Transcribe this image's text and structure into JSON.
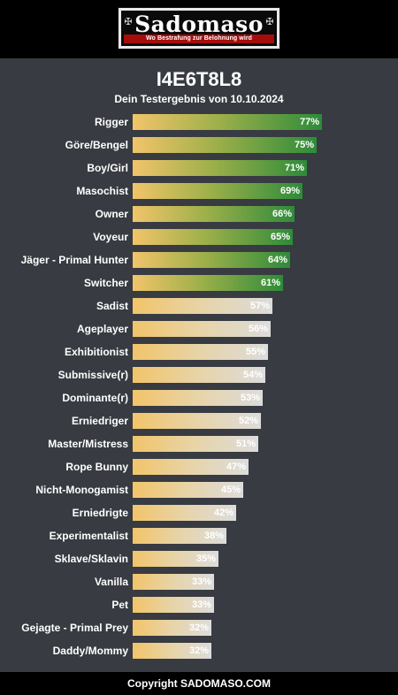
{
  "header": {
    "logo_text": "Sadomaso",
    "tagline": "Wo Bestrafung zur Belohnung wird"
  },
  "result": {
    "code": "I4E6T8L8",
    "subtitle": "Dein Testergebnis von 10.10.2024"
  },
  "chart_data": {
    "type": "bar",
    "categories": [
      "Rigger",
      "Göre/Bengel",
      "Boy/Girl",
      "Masochist",
      "Owner",
      "Voyeur",
      "Jäger - Primal Hunter",
      "Switcher",
      "Sadist",
      "Ageplayer",
      "Exhibitionist",
      "Submissive(r)",
      "Dominante(r)",
      "Erniedriger",
      "Master/Mistress",
      "Rope Bunny",
      "Nicht-Monogamist",
      "Erniedrigte",
      "Experimentalist",
      "Sklave/Sklavin",
      "Vanilla",
      "Pet",
      "Gejagte - Primal Prey",
      "Daddy/Mommy"
    ],
    "values": [
      77,
      75,
      71,
      69,
      66,
      65,
      64,
      61,
      57,
      56,
      55,
      54,
      53,
      52,
      51,
      47,
      45,
      42,
      38,
      35,
      33,
      33,
      32,
      32
    ],
    "value_labels": [
      "77%",
      "75%",
      "71%",
      "69%",
      "66%",
      "65%",
      "64%",
      "61%",
      "57%",
      "56%",
      "55%",
      "54%",
      "53%",
      "52%",
      "51%",
      "47%",
      "45%",
      "42%",
      "38%",
      "35%",
      "33%",
      "33%",
      "32%",
      "32%"
    ],
    "xlim": [
      0,
      100
    ],
    "colors": {
      "high": "#2e8b3a",
      "low": "#dcdcdc",
      "start": "#f2c46a"
    }
  },
  "footer": {
    "copyright": "Copyright SADOMASO.COM"
  }
}
